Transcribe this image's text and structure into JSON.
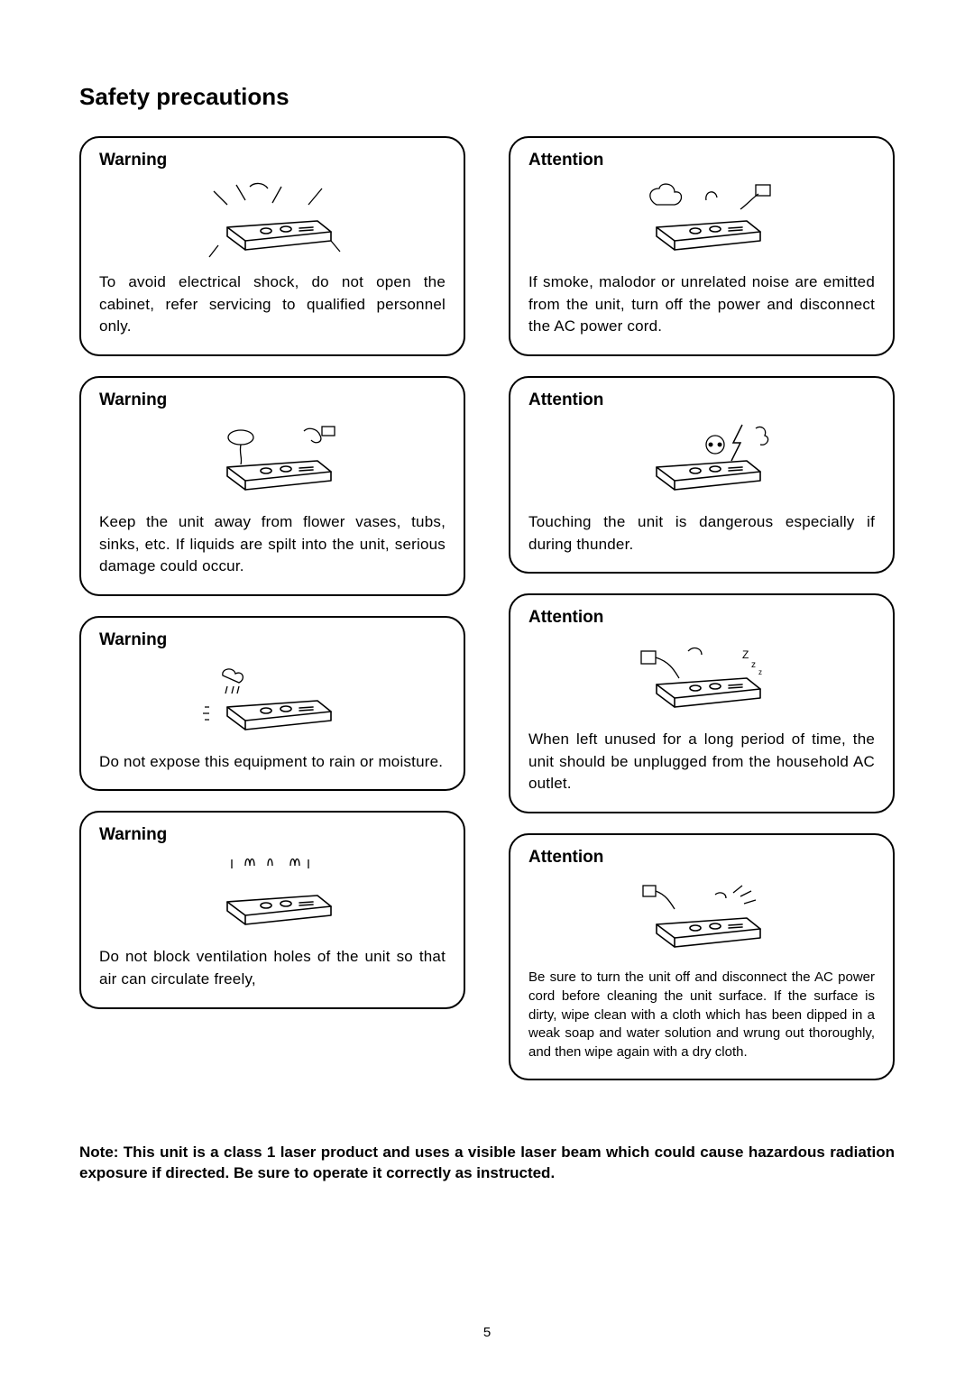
{
  "title": "Safety precautions",
  "pageNumber": "5",
  "note": "Note: This unit is a class 1 laser product and uses a visible laser beam which could cause hazardous radiation exposure if directed.  Be sure to operate it correctly as instructed.",
  "leftColumn": [
    {
      "heading": "Warning",
      "text": "To avoid electrical shock, do not open the cabinet, refer servicing to qualified personnel only.",
      "illus": "shock"
    },
    {
      "heading": "Warning",
      "text": "Keep the unit away from flower vases, tubs, sinks, etc.  If liquids are spilt into the unit, serious damage could occur.",
      "illus": "liquid"
    },
    {
      "heading": "Warning",
      "text": "Do not expose this equipment to rain or moisture.",
      "illus": "rain"
    },
    {
      "heading": "Warning",
      "text": "Do not block ventilation holes of the unit so that air can circulate freely,",
      "illus": "vent"
    }
  ],
  "rightColumn": [
    {
      "heading": "Attention",
      "text": "If smoke, malodor or unrelated noise are emitted from the unit, turn off the power and disconnect the AC power cord.",
      "illus": "smoke"
    },
    {
      "heading": "Attention",
      "text": "Touching the unit is dangerous especially if during thunder.",
      "illus": "thunder"
    },
    {
      "heading": "Attention",
      "text": "When left unused for a long period of time, the unit should be unplugged from the household AC outlet.",
      "illus": "unplug"
    },
    {
      "heading": "Attention",
      "text": "Be sure to turn the unit off and disconnect the AC power cord before cleaning the unit surface.  If the surface is dirty, wipe clean with a cloth which has been dipped in a weak soap and water solution and wrung out thoroughly, and then wipe again with a dry cloth.",
      "illus": "clean",
      "small": true
    }
  ],
  "style": {
    "boxBorderColor": "#000000",
    "boxBorderRadius": 22,
    "boxBorderWidth": 2.5,
    "background": "#ffffff",
    "textColor": "#000000",
    "titleFontSize": 26,
    "headingFontSize": 19,
    "bodyFontSize": 17,
    "smallBodyFontSize": 15
  },
  "illusSize": {
    "w": 170,
    "h": 90
  }
}
